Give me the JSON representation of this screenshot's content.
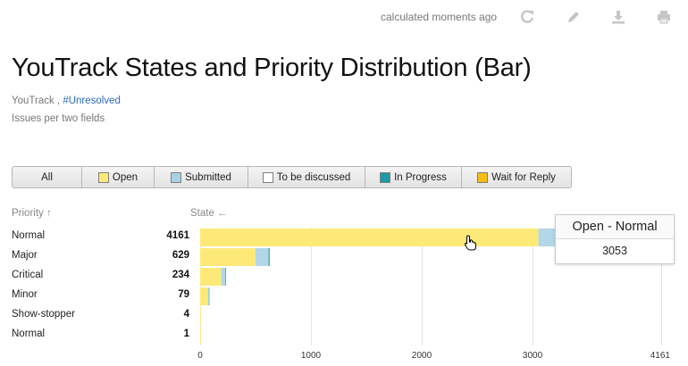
{
  "header": {
    "calculated": "calculated moments ago",
    "tools": [
      {
        "icon": "refresh-icon"
      },
      {
        "icon": "pencil-icon"
      },
      {
        "icon": "download-icon"
      },
      {
        "icon": "print-icon"
      }
    ]
  },
  "report": {
    "title": "YouTrack States and Priority Distribution (Bar)",
    "project": "YouTrack",
    "separator": " , ",
    "query": "#Unresolved",
    "description": "Issues per two fields"
  },
  "filters": [
    {
      "label": "All",
      "color": null
    },
    {
      "label": "Open",
      "color": "#fde978"
    },
    {
      "label": "Submitted",
      "color": "#a9d1e6"
    },
    {
      "label": "To be discussed",
      "color": "#ffffff"
    },
    {
      "label": "In Progress",
      "color": "#1c9aa5"
    },
    {
      "label": "Wait for Reply",
      "color": "#f6bd16"
    }
  ],
  "columns": {
    "priority": "Priority ↑",
    "state": "State ←"
  },
  "chart_data": {
    "type": "bar",
    "orientation": "horizontal",
    "stacked": true,
    "categories": [
      "Normal",
      "Major",
      "Critical",
      "Minor",
      "Show-stopper",
      "Normal"
    ],
    "totals": [
      4161,
      629,
      234,
      79,
      4,
      1
    ],
    "series": [
      {
        "name": "Open",
        "color": "#fde978",
        "values": [
          3053,
          500,
          190,
          70,
          4,
          1
        ]
      },
      {
        "name": "Submitted",
        "color": "#b2d7e8",
        "values": [
          1108,
          115,
          36,
          8,
          0,
          0
        ]
      },
      {
        "name": "In Progress",
        "color": "#5fb5a8",
        "values": [
          0,
          14,
          8,
          1,
          0,
          0
        ]
      }
    ],
    "xlim": [
      0,
      4161
    ],
    "xticks": [
      0,
      1000,
      2000,
      3000,
      4161
    ],
    "grid": true
  },
  "tooltip": {
    "title": "Open - Normal",
    "value": "3053"
  }
}
